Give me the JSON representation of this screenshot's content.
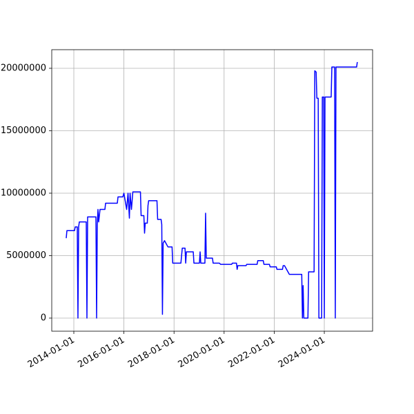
{
  "chart_data": {
    "type": "line",
    "color": "#0000ff",
    "grid": true,
    "x": [
      "2013-09-12",
      "2013-09-22",
      "2014-01-11",
      "2014-01-21",
      "2014-02-20",
      "2014-03-02",
      "2014-03-12",
      "2014-03-22",
      "2014-07-01",
      "2014-07-11",
      "2014-07-21",
      "2014-11-19",
      "2014-11-29",
      "2014-12-09",
      "2014-12-19",
      "2014-12-29",
      "2015-01-18",
      "2015-03-30",
      "2015-04-09",
      "2015-09-27",
      "2015-10-07",
      "2015-12-16",
      "2016-01-01",
      "2016-02-10",
      "2016-03-01",
      "2016-03-21",
      "2016-03-31",
      "2016-04-20",
      "2016-05-10",
      "2016-08-29",
      "2016-09-08",
      "2016-10-18",
      "2016-10-28",
      "2016-11-07",
      "2016-12-07",
      "2016-12-17",
      "2016-12-27",
      "2017-04-27",
      "2017-05-07",
      "2017-06-26",
      "2017-07-06",
      "2017-07-16",
      "2017-07-26",
      "2017-08-15",
      "2017-09-04",
      "2017-10-04",
      "2017-12-03",
      "2017-12-13",
      "2018-04-11",
      "2018-05-01",
      "2018-06-10",
      "2018-06-20",
      "2018-06-30",
      "2018-10-08",
      "2018-10-18",
      "2019-01-06",
      "2019-01-16",
      "2019-01-26",
      "2019-03-27",
      "2019-04-06",
      "2019-04-16",
      "2019-07-15",
      "2019-07-25",
      "2019-10-23",
      "2019-11-12",
      "2020-04-20",
      "2020-04-30",
      "2020-06-29",
      "2020-07-09",
      "2020-07-19",
      "2020-11-16",
      "2020-11-26",
      "2021-04-26",
      "2021-05-06",
      "2021-07-25",
      "2021-08-04",
      "2021-10-23",
      "2021-11-02",
      "2022-01-31",
      "2022-02-10",
      "2022-05-01",
      "2022-05-11",
      "2022-05-31",
      "2022-08-09",
      "2023-02-06",
      "2023-02-16",
      "2023-02-26",
      "2023-03-08",
      "2023-05-07",
      "2023-05-17",
      "2023-08-05",
      "2023-08-15",
      "2023-09-04",
      "2023-09-14",
      "2023-10-04",
      "2023-10-14",
      "2023-11-23",
      "2023-12-03",
      "2023-12-23",
      "2024-01-01",
      "2024-01-11",
      "2024-04-10",
      "2024-04-20",
      "2024-05-30",
      "2024-06-09",
      "2024-06-19",
      "2025-04-16",
      "2025-04-26"
    ],
    "values": [
      6400000,
      7000000,
      7000000,
      7300000,
      7300000,
      0,
      7300000,
      7700000,
      7700000,
      0,
      8100000,
      8100000,
      0,
      7500000,
      8700000,
      7700000,
      8700000,
      8700000,
      9200000,
      9200000,
      9700000,
      9700000,
      10000000,
      8700000,
      10000000,
      8000000,
      10000000,
      8700000,
      10100000,
      10100000,
      8200000,
      8200000,
      6800000,
      7600000,
      7600000,
      9000000,
      9400000,
      9400000,
      7900000,
      7900000,
      7500000,
      300000,
      6000000,
      6200000,
      6000000,
      5700000,
      5700000,
      4400000,
      4400000,
      5600000,
      5600000,
      4400000,
      5300000,
      5300000,
      4400000,
      4400000,
      5300000,
      4400000,
      4400000,
      8400000,
      4800000,
      4800000,
      4400000,
      4400000,
      4300000,
      4300000,
      4400000,
      4400000,
      3900000,
      4200000,
      4200000,
      4300000,
      4300000,
      4600000,
      4600000,
      4300000,
      4300000,
      4100000,
      4100000,
      3900000,
      3900000,
      4200000,
      4200000,
      3500000,
      3500000,
      0,
      2600000,
      0,
      0,
      3700000,
      3700000,
      19800000,
      19700000,
      17600000,
      17600000,
      0,
      0,
      17700000,
      17700000,
      0,
      17700000,
      17700000,
      20100000,
      20100000,
      0,
      20100000,
      20100000,
      20500000
    ],
    "xlim": [
      "2013-02-13",
      "2025-12-05"
    ],
    "xticks": [
      "2014-01-01",
      "2016-01-01",
      "2018-01-01",
      "2020-01-01",
      "2022-01-01",
      "2024-01-01"
    ],
    "ylim": [
      -1050000,
      21490000
    ],
    "yticks": [
      0,
      5000000,
      10000000,
      15000000,
      20000000
    ]
  }
}
